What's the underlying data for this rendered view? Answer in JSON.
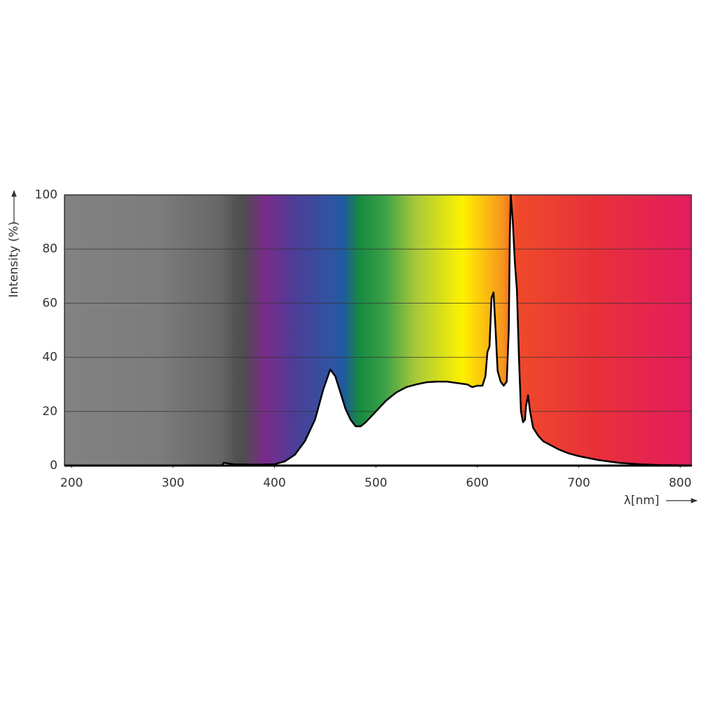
{
  "chart_data": {
    "type": "area",
    "xlabel": "λ[nm]",
    "ylabel": "Intensity (%)",
    "x": [
      348,
      350,
      360,
      380,
      400,
      410,
      420,
      430,
      440,
      448,
      455,
      460,
      465,
      470,
      475,
      480,
      485,
      490,
      500,
      510,
      520,
      530,
      540,
      550,
      560,
      570,
      580,
      590,
      595,
      600,
      605,
      608,
      610,
      612,
      614,
      616,
      618,
      620,
      623,
      626,
      629,
      631,
      632,
      633,
      635,
      637,
      639,
      641,
      643,
      645,
      647,
      648,
      650,
      652,
      655,
      660,
      665,
      670,
      680,
      690,
      700,
      720,
      740,
      760,
      780,
      800,
      811
    ],
    "values": [
      0,
      1,
      0.5,
      0.3,
      0.5,
      1.5,
      4,
      9,
      17,
      28,
      35.5,
      33,
      27,
      21,
      17,
      14.5,
      14.5,
      16,
      20,
      24,
      27,
      29,
      30,
      30.8,
      31,
      31,
      30.5,
      30,
      29,
      29.5,
      29.5,
      33,
      42,
      44,
      62,
      64,
      50,
      35,
      31,
      29.5,
      31,
      50,
      85,
      100,
      90,
      75,
      65,
      40,
      20,
      16,
      17,
      22,
      26,
      20,
      14,
      11,
      9,
      8,
      6,
      4.5,
      3.5,
      2,
      1,
      0.5,
      0.2,
      0.1,
      0
    ],
    "color": "#000000",
    "xlim": [
      193,
      811
    ],
    "xticks": [
      200,
      300,
      400,
      500,
      600,
      700,
      800
    ],
    "ylim": [
      0,
      100
    ],
    "yticks": [
      0,
      20,
      40,
      60,
      80,
      100
    ],
    "grid": true
  }
}
